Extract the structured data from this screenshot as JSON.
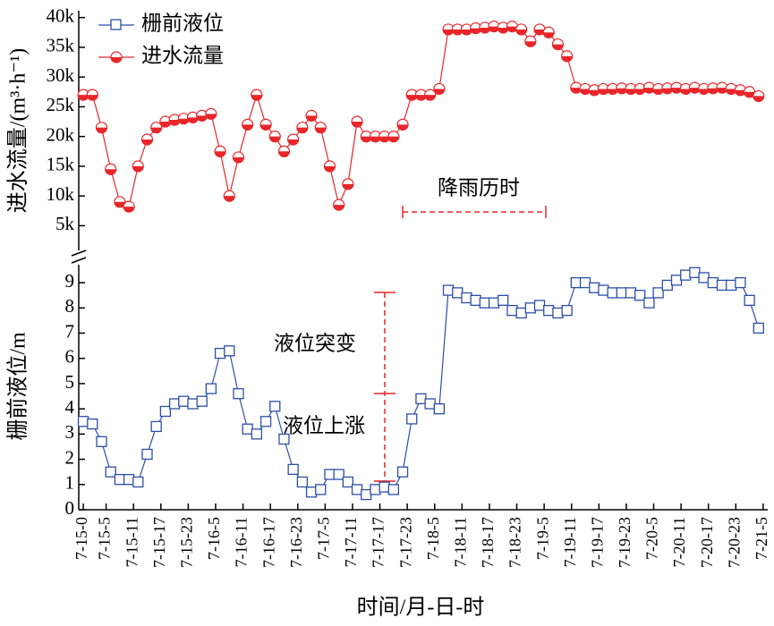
{
  "chart_data": [
    {
      "type": "line",
      "ylabel": "进水流量/(m³·h⁻¹)",
      "annotations": [
        "降雨历时"
      ],
      "x": [
        0,
        2,
        4,
        6,
        8,
        10,
        12,
        14,
        16,
        18,
        20,
        22,
        24,
        26,
        28,
        30,
        32,
        34,
        36,
        38,
        40,
        42,
        44,
        46,
        48,
        50,
        52,
        54,
        56,
        58,
        60,
        62,
        64,
        66,
        68,
        70,
        72,
        74,
        76,
        78,
        80,
        82,
        84,
        86,
        88,
        90,
        92,
        94,
        96,
        98,
        100,
        102,
        104,
        106,
        108,
        110,
        112,
        114,
        116,
        118,
        120,
        122,
        124,
        126,
        128,
        130,
        132,
        134,
        136,
        138,
        140,
        142,
        144,
        146,
        148
      ],
      "xlim": [
        -1,
        150
      ],
      "ylim": [
        1000,
        41000
      ],
      "yticks": [
        {
          "value": 5000,
          "label": "5k"
        },
        {
          "value": 10000,
          "label": "10k"
        },
        {
          "value": 15000,
          "label": "15k"
        },
        {
          "value": 20000,
          "label": "20k"
        },
        {
          "value": 25000,
          "label": "25k"
        },
        {
          "value": 30000,
          "label": "30k"
        },
        {
          "value": 35000,
          "label": "35k"
        },
        {
          "value": 40000,
          "label": "40k"
        }
      ],
      "series": [
        {
          "name": "进水流量",
          "color": "#e8262a",
          "values": [
            27000,
            27000,
            21500,
            14500,
            9000,
            8200,
            15000,
            19500,
            21500,
            22500,
            22800,
            23000,
            23200,
            23500,
            23800,
            17500,
            10000,
            16500,
            22000,
            27000,
            22000,
            20000,
            17500,
            19500,
            21500,
            23500,
            21500,
            15000,
            8500,
            12000,
            22500,
            20000,
            20000,
            20000,
            20000,
            22000,
            27000,
            27000,
            27000,
            28000,
            38000,
            38000,
            38000,
            38200,
            38300,
            38500,
            38300,
            38500,
            38000,
            36000,
            38000,
            37500,
            35500,
            33500,
            28200,
            28000,
            27800,
            28000,
            28000,
            28100,
            28000,
            28000,
            28200,
            28000,
            28100,
            28200,
            28000,
            28200,
            28000,
            28100,
            28200,
            28000,
            27800,
            27500,
            26800
          ]
        }
      ]
    },
    {
      "type": "line",
      "ylabel": "栅前液位/m",
      "xlabel": "时间/月-日-时",
      "annotations": [
        "液位突变",
        "液位上涨"
      ],
      "x": [
        0,
        2,
        4,
        6,
        8,
        10,
        12,
        14,
        16,
        18,
        20,
        22,
        24,
        26,
        28,
        30,
        32,
        34,
        36,
        38,
        40,
        42,
        44,
        46,
        48,
        50,
        52,
        54,
        56,
        58,
        60,
        62,
        64,
        66,
        68,
        70,
        72,
        74,
        76,
        78,
        80,
        82,
        84,
        86,
        88,
        90,
        92,
        94,
        96,
        98,
        100,
        102,
        104,
        106,
        108,
        110,
        112,
        114,
        116,
        118,
        120,
        122,
        124,
        126,
        128,
        130,
        132,
        134,
        136,
        138,
        140,
        142,
        144,
        146,
        148
      ],
      "xlim": [
        -1,
        150
      ],
      "ylim": [
        0,
        9.5
      ],
      "yticks": [
        0,
        1,
        2,
        3,
        4,
        5,
        6,
        7,
        8,
        9
      ],
      "xticks": [
        {
          "value": 0,
          "label": "7-15-0"
        },
        {
          "value": 5,
          "label": "7-15-5"
        },
        {
          "value": 11,
          "label": "7-15-11"
        },
        {
          "value": 17,
          "label": "7-15-17"
        },
        {
          "value": 23,
          "label": "7-15-23"
        },
        {
          "value": 29,
          "label": "7-16-5"
        },
        {
          "value": 35,
          "label": "7-16-11"
        },
        {
          "value": 41,
          "label": "7-16-17"
        },
        {
          "value": 47,
          "label": "7-16-23"
        },
        {
          "value": 53,
          "label": "7-17-5"
        },
        {
          "value": 59,
          "label": "7-17-11"
        },
        {
          "value": 65,
          "label": "7-17-17"
        },
        {
          "value": 71,
          "label": "7-17-23"
        },
        {
          "value": 77,
          "label": "7-18-5"
        },
        {
          "value": 83,
          "label": "7-18-11"
        },
        {
          "value": 89,
          "label": "7-18-17"
        },
        {
          "value": 95,
          "label": "7-18-23"
        },
        {
          "value": 101,
          "label": "7-19-5"
        },
        {
          "value": 107,
          "label": "7-19-11"
        },
        {
          "value": 113,
          "label": "7-19-17"
        },
        {
          "value": 119,
          "label": "7-19-23"
        },
        {
          "value": 125,
          "label": "7-20-5"
        },
        {
          "value": 131,
          "label": "7-20-11"
        },
        {
          "value": 137,
          "label": "7-20-17"
        },
        {
          "value": 143,
          "label": "7-20-23"
        },
        {
          "value": 149,
          "label": "7-21-5"
        }
      ],
      "series": [
        {
          "name": "栅前液位",
          "color": "#2b4fa8",
          "values": [
            3.5,
            3.4,
            2.7,
            1.5,
            1.2,
            1.2,
            1.1,
            2.2,
            3.3,
            3.9,
            4.2,
            4.3,
            4.2,
            4.3,
            4.8,
            6.2,
            6.3,
            4.6,
            3.2,
            3.0,
            3.5,
            4.1,
            2.8,
            1.6,
            1.1,
            0.7,
            0.8,
            1.4,
            1.4,
            1.1,
            0.8,
            0.6,
            0.8,
            0.9,
            0.8,
            1.5,
            3.6,
            4.4,
            4.2,
            4.0,
            8.7,
            8.6,
            8.4,
            8.3,
            8.2,
            8.2,
            8.3,
            7.9,
            7.8,
            8.0,
            8.1,
            7.9,
            7.8,
            7.9,
            9.0,
            9.0,
            8.8,
            8.7,
            8.6,
            8.6,
            8.6,
            8.5,
            8.2,
            8.6,
            8.9,
            9.1,
            9.3,
            9.4,
            9.2,
            9.0,
            8.9,
            8.9,
            9.0,
            8.3,
            7.2
          ]
        }
      ]
    }
  ]
}
